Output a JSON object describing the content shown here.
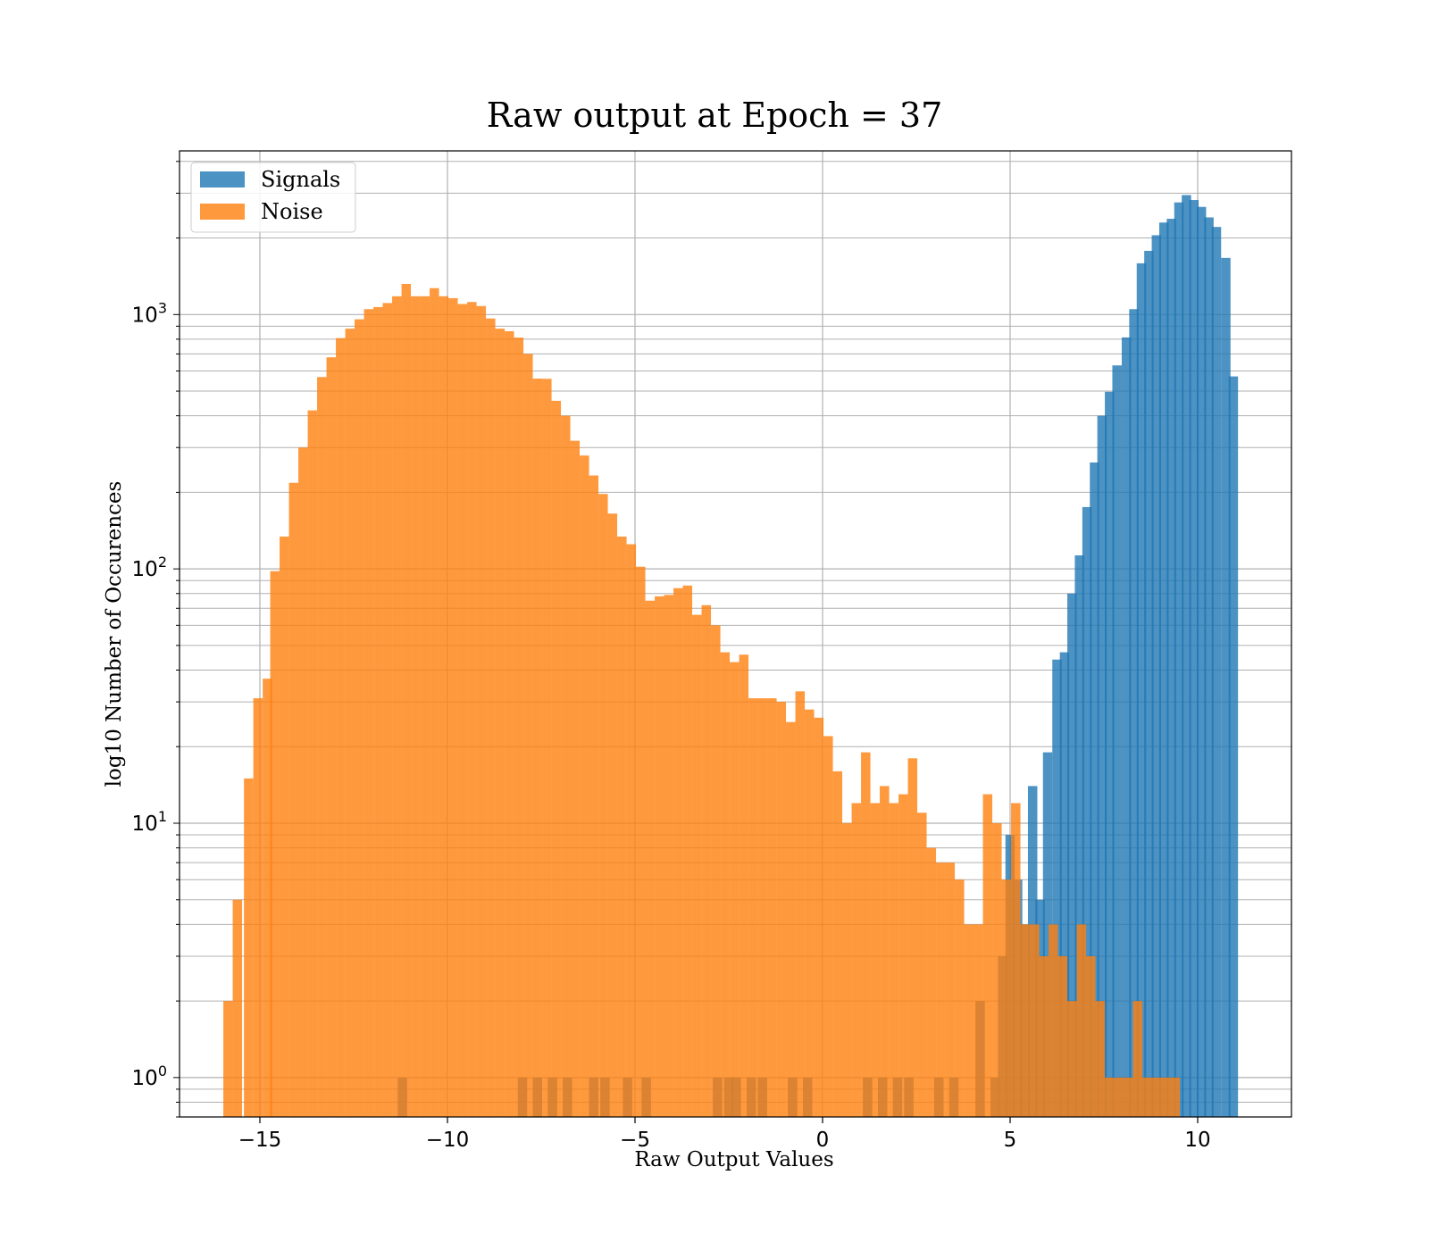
{
  "chart_data": {
    "type": "bar",
    "title": "Raw output at Epoch = 37",
    "xlabel": "Raw Output Values",
    "ylabel": "log10 Number of Occurences",
    "xlim": [
      -17.2,
      12.5
    ],
    "ylim": [
      0.7,
      4400
    ],
    "yscale": "log",
    "grid": true,
    "legend_position": "top-left",
    "x_ticks": [
      -15,
      -10,
      -5,
      0,
      5,
      10
    ],
    "x_tick_labels": [
      "−15",
      "−10",
      "−5",
      "0",
      "5",
      "10"
    ],
    "y_ticks": [
      1,
      10,
      100,
      1000
    ],
    "series": [
      {
        "name": "Signals",
        "color": "#1f77b4",
        "bins": [
          [
            -11.2,
            1
          ],
          [
            -8.0,
            1
          ],
          [
            -7.6,
            1
          ],
          [
            -7.2,
            1
          ],
          [
            -6.8,
            1
          ],
          [
            -6.1,
            1
          ],
          [
            -5.8,
            1
          ],
          [
            -5.2,
            1
          ],
          [
            -4.7,
            1
          ],
          [
            -2.8,
            1
          ],
          [
            -2.5,
            1
          ],
          [
            -2.3,
            1
          ],
          [
            -1.9,
            1
          ],
          [
            -1.6,
            1
          ],
          [
            -0.8,
            1
          ],
          [
            -0.4,
            1
          ],
          [
            1.2,
            1
          ],
          [
            1.6,
            1
          ],
          [
            2.0,
            1
          ],
          [
            2.3,
            1
          ],
          [
            3.1,
            1
          ],
          [
            3.5,
            1
          ],
          [
            4.2,
            2
          ],
          [
            4.6,
            1
          ],
          [
            4.8,
            3
          ],
          [
            5.0,
            9
          ],
          [
            5.2,
            6
          ],
          [
            5.4,
            4
          ],
          [
            5.6,
            14
          ],
          [
            5.8,
            5
          ],
          [
            6.0,
            19
          ],
          [
            6.25,
            44
          ],
          [
            6.45,
            47
          ],
          [
            6.65,
            80
          ],
          [
            6.85,
            113
          ],
          [
            7.05,
            175
          ],
          [
            7.25,
            262
          ],
          [
            7.45,
            400
          ],
          [
            7.65,
            497
          ],
          [
            7.85,
            631
          ],
          [
            8.1,
            813
          ],
          [
            8.3,
            1050
          ],
          [
            8.5,
            1590
          ],
          [
            8.7,
            1780
          ],
          [
            8.9,
            2050
          ],
          [
            9.1,
            2300
          ],
          [
            9.3,
            2380
          ],
          [
            9.5,
            2760
          ],
          [
            9.7,
            2950
          ],
          [
            9.9,
            2820
          ],
          [
            10.1,
            2650
          ],
          [
            10.3,
            2410
          ],
          [
            10.5,
            2210
          ],
          [
            10.75,
            1670
          ],
          [
            10.95,
            571
          ]
        ]
      },
      {
        "name": "Noise",
        "color": "#ff7f0e",
        "bins": [
          [
            -15.85,
            2
          ],
          [
            -15.6,
            5
          ],
          [
            -15.3,
            15
          ],
          [
            -15.05,
            31
          ],
          [
            -14.8,
            37
          ],
          [
            -14.6,
            98
          ],
          [
            -14.35,
            134
          ],
          [
            -14.1,
            218
          ],
          [
            -13.85,
            300
          ],
          [
            -13.6,
            420
          ],
          [
            -13.35,
            568
          ],
          [
            -13.1,
            679
          ],
          [
            -12.85,
            808
          ],
          [
            -12.6,
            880
          ],
          [
            -12.35,
            958
          ],
          [
            -12.1,
            1050
          ],
          [
            -11.85,
            1070
          ],
          [
            -11.6,
            1110
          ],
          [
            -11.35,
            1180
          ],
          [
            -11.1,
            1320
          ],
          [
            -10.85,
            1180
          ],
          [
            -10.6,
            1180
          ],
          [
            -10.35,
            1270
          ],
          [
            -10.1,
            1180
          ],
          [
            -9.85,
            1160
          ],
          [
            -9.6,
            1100
          ],
          [
            -9.35,
            1120
          ],
          [
            -9.1,
            1080
          ],
          [
            -8.85,
            965
          ],
          [
            -8.6,
            880
          ],
          [
            -8.35,
            860
          ],
          [
            -8.1,
            812
          ],
          [
            -7.85,
            700
          ],
          [
            -7.6,
            560
          ],
          [
            -7.35,
            559
          ],
          [
            -7.1,
            458
          ],
          [
            -6.85,
            400
          ],
          [
            -6.6,
            319
          ],
          [
            -6.35,
            279
          ],
          [
            -6.1,
            233
          ],
          [
            -5.85,
            197
          ],
          [
            -5.6,
            165
          ],
          [
            -5.35,
            134
          ],
          [
            -5.1,
            125
          ],
          [
            -4.85,
            102
          ],
          [
            -4.6,
            75
          ],
          [
            -4.35,
            78
          ],
          [
            -4.1,
            79
          ],
          [
            -3.85,
            84
          ],
          [
            -3.6,
            86
          ],
          [
            -3.35,
            66
          ],
          [
            -3.1,
            72
          ],
          [
            -2.85,
            60
          ],
          [
            -2.6,
            47
          ],
          [
            -2.35,
            43
          ],
          [
            -2.1,
            46
          ],
          [
            -1.85,
            31
          ],
          [
            -1.6,
            31
          ],
          [
            -1.35,
            31
          ],
          [
            -1.1,
            30
          ],
          [
            -0.85,
            25
          ],
          [
            -0.6,
            33
          ],
          [
            -0.35,
            28
          ],
          [
            -0.1,
            26
          ],
          [
            0.15,
            22
          ],
          [
            0.4,
            16
          ],
          [
            0.65,
            10
          ],
          [
            0.9,
            12
          ],
          [
            1.15,
            19
          ],
          [
            1.4,
            12
          ],
          [
            1.65,
            14
          ],
          [
            1.9,
            12
          ],
          [
            2.15,
            13
          ],
          [
            2.4,
            18
          ],
          [
            2.65,
            11
          ],
          [
            2.9,
            8
          ],
          [
            3.15,
            7
          ],
          [
            3.4,
            7
          ],
          [
            3.65,
            6
          ],
          [
            3.9,
            4
          ],
          [
            4.15,
            4
          ],
          [
            4.4,
            13
          ],
          [
            4.65,
            10
          ],
          [
            4.9,
            6
          ],
          [
            5.15,
            12
          ],
          [
            5.4,
            4
          ],
          [
            5.65,
            4
          ],
          [
            5.9,
            3
          ],
          [
            6.15,
            4
          ],
          [
            6.4,
            3
          ],
          [
            6.65,
            2
          ],
          [
            6.9,
            4
          ],
          [
            7.15,
            3
          ],
          [
            7.4,
            2
          ],
          [
            7.65,
            1
          ],
          [
            7.9,
            1
          ],
          [
            8.15,
            1
          ],
          [
            8.4,
            2
          ],
          [
            8.65,
            1
          ],
          [
            8.9,
            1
          ],
          [
            9.15,
            1
          ],
          [
            9.4,
            1
          ]
        ]
      }
    ]
  }
}
